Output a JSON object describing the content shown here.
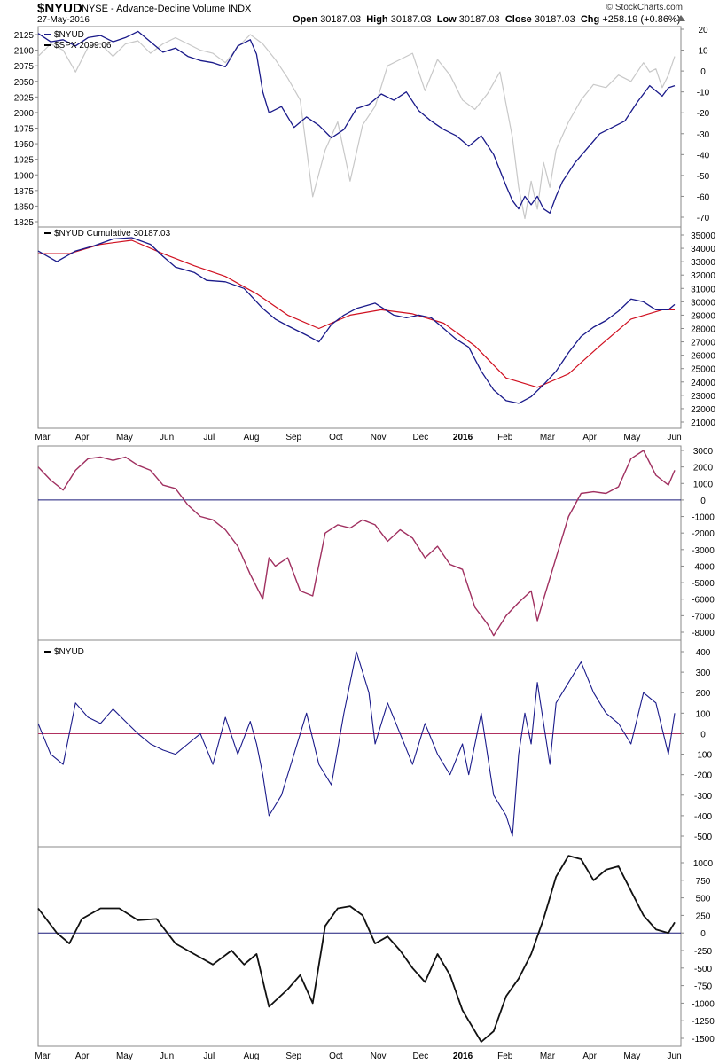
{
  "header": {
    "symbol": "$NYUD",
    "description": "NYSE - Advance-Decline Volume INDX",
    "date": "27-May-2016",
    "open_label": "Open",
    "open": "30187.03",
    "high_label": "High",
    "high": "30187.03",
    "low_label": "Low",
    "low": "30187.03",
    "close_label": "Close",
    "close": "30187.03",
    "chg_label": "Chg",
    "chg": "+258.19 (+0.86%)",
    "brand": "© StockCharts.com"
  },
  "chart_data": [
    {
      "type": "line",
      "legend": [
        "$NYUD",
        "$SPX 2099.06"
      ],
      "left_axis_ticks": [
        2125,
        2100,
        2075,
        2050,
        2025,
        2000,
        1975,
        1950,
        1925,
        1900,
        1875,
        1850,
        1825
      ],
      "right_axis_ticks": [
        20,
        10,
        0,
        -10,
        -20,
        -30,
        -40,
        -50,
        -60,
        -70
      ],
      "spx_points": [
        [
          0,
          2090
        ],
        [
          4,
          2110
        ],
        [
          8,
          2100
        ],
        [
          12,
          2065
        ],
        [
          16,
          2105
        ],
        [
          20,
          2110
        ],
        [
          24,
          2090
        ],
        [
          28,
          2110
        ],
        [
          32,
          2115
        ],
        [
          36,
          2095
        ],
        [
          40,
          2110
        ],
        [
          44,
          2120
        ],
        [
          48,
          2110
        ],
        [
          52,
          2100
        ],
        [
          56,
          2095
        ],
        [
          60,
          2080
        ],
        [
          64,
          2105
        ],
        [
          68,
          2125
        ],
        [
          72,
          2110
        ],
        [
          76,
          2085
        ],
        [
          80,
          2055
        ],
        [
          84,
          2020
        ],
        [
          88,
          1865
        ],
        [
          92,
          1940
        ],
        [
          96,
          1985
        ],
        [
          100,
          1890
        ],
        [
          104,
          1980
        ],
        [
          108,
          2010
        ],
        [
          112,
          2075
        ],
        [
          116,
          2085
        ],
        [
          120,
          2095
        ],
        [
          124,
          2035
        ],
        [
          128,
          2085
        ],
        [
          132,
          2060
        ],
        [
          136,
          2020
        ],
        [
          140,
          2005
        ],
        [
          144,
          2030
        ],
        [
          148,
          2065
        ],
        [
          152,
          1960
        ],
        [
          154,
          1880
        ],
        [
          156,
          1830
        ],
        [
          158,
          1890
        ],
        [
          160,
          1845
        ],
        [
          162,
          1920
        ],
        [
          164,
          1880
        ],
        [
          166,
          1940
        ],
        [
          170,
          1985
        ],
        [
          174,
          2020
        ],
        [
          178,
          2045
        ],
        [
          182,
          2040
        ],
        [
          186,
          2060
        ],
        [
          190,
          2050
        ],
        [
          194,
          2080
        ],
        [
          196,
          2065
        ],
        [
          198,
          2070
        ],
        [
          200,
          2040
        ],
        [
          202,
          2060
        ],
        [
          204,
          2090
        ]
      ],
      "nyud_points": [
        [
          0,
          18
        ],
        [
          4,
          14
        ],
        [
          8,
          15
        ],
        [
          12,
          12
        ],
        [
          16,
          16
        ],
        [
          20,
          17
        ],
        [
          24,
          14
        ],
        [
          28,
          16
        ],
        [
          32,
          19
        ],
        [
          36,
          14
        ],
        [
          40,
          9
        ],
        [
          44,
          11
        ],
        [
          48,
          7
        ],
        [
          52,
          5
        ],
        [
          56,
          4
        ],
        [
          60,
          2
        ],
        [
          64,
          12
        ],
        [
          68,
          15
        ],
        [
          70,
          8
        ],
        [
          72,
          -10
        ],
        [
          74,
          -20
        ],
        [
          78,
          -17
        ],
        [
          82,
          -27
        ],
        [
          86,
          -22
        ],
        [
          90,
          -26
        ],
        [
          94,
          -32
        ],
        [
          98,
          -28
        ],
        [
          102,
          -18
        ],
        [
          106,
          -16
        ],
        [
          110,
          -11
        ],
        [
          114,
          -14
        ],
        [
          118,
          -10
        ],
        [
          122,
          -19
        ],
        [
          126,
          -24
        ],
        [
          130,
          -28
        ],
        [
          134,
          -31
        ],
        [
          138,
          -36
        ],
        [
          142,
          -31
        ],
        [
          146,
          -40
        ],
        [
          150,
          -55
        ],
        [
          152,
          -62
        ],
        [
          154,
          -66
        ],
        [
          156,
          -60
        ],
        [
          158,
          -64
        ],
        [
          160,
          -60
        ],
        [
          162,
          -66
        ],
        [
          164,
          -68
        ],
        [
          166,
          -60
        ],
        [
          168,
          -53
        ],
        [
          172,
          -44
        ],
        [
          176,
          -37
        ],
        [
          180,
          -30
        ],
        [
          184,
          -27
        ],
        [
          188,
          -24
        ],
        [
          192,
          -15
        ],
        [
          196,
          -7
        ],
        [
          200,
          -12
        ],
        [
          202,
          -8
        ],
        [
          204,
          -7
        ]
      ]
    },
    {
      "type": "line",
      "legend": [
        "$NYUD Cumulative 30187.03"
      ],
      "right_axis_ticks": [
        35000,
        34000,
        33000,
        32000,
        31000,
        30000,
        29000,
        28000,
        27000,
        26000,
        25000,
        24000,
        23000,
        22000,
        21000
      ],
      "cumulative_points": [
        [
          0,
          33800
        ],
        [
          6,
          33000
        ],
        [
          12,
          33800
        ],
        [
          18,
          34200
        ],
        [
          24,
          34700
        ],
        [
          30,
          34800
        ],
        [
          36,
          34300
        ],
        [
          40,
          33400
        ],
        [
          44,
          32600
        ],
        [
          50,
          32200
        ],
        [
          54,
          31600
        ],
        [
          60,
          31500
        ],
        [
          66,
          31000
        ],
        [
          72,
          29500
        ],
        [
          76,
          28700
        ],
        [
          80,
          28200
        ],
        [
          86,
          27500
        ],
        [
          90,
          27000
        ],
        [
          94,
          28300
        ],
        [
          98,
          29000
        ],
        [
          102,
          29500
        ],
        [
          108,
          29900
        ],
        [
          114,
          29000
        ],
        [
          118,
          28800
        ],
        [
          122,
          29000
        ],
        [
          126,
          28800
        ],
        [
          130,
          28000
        ],
        [
          134,
          27200
        ],
        [
          138,
          26600
        ],
        [
          142,
          24800
        ],
        [
          146,
          23400
        ],
        [
          150,
          22600
        ],
        [
          154,
          22400
        ],
        [
          158,
          22900
        ],
        [
          162,
          23800
        ],
        [
          166,
          24800
        ],
        [
          170,
          26200
        ],
        [
          174,
          27400
        ],
        [
          178,
          28100
        ],
        [
          182,
          28600
        ],
        [
          186,
          29300
        ],
        [
          190,
          30200
        ],
        [
          194,
          30000
        ],
        [
          198,
          29400
        ],
        [
          202,
          29400
        ],
        [
          204,
          29800
        ]
      ],
      "ma_points": [
        [
          0,
          33600
        ],
        [
          10,
          33600
        ],
        [
          20,
          34300
        ],
        [
          30,
          34600
        ],
        [
          40,
          33600
        ],
        [
          50,
          32700
        ],
        [
          60,
          31900
        ],
        [
          70,
          30600
        ],
        [
          80,
          29000
        ],
        [
          90,
          28000
        ],
        [
          100,
          29000
        ],
        [
          110,
          29400
        ],
        [
          120,
          29100
        ],
        [
          130,
          28400
        ],
        [
          140,
          26700
        ],
        [
          150,
          24300
        ],
        [
          160,
          23600
        ],
        [
          170,
          24600
        ],
        [
          180,
          26700
        ],
        [
          190,
          28700
        ],
        [
          200,
          29400
        ],
        [
          204,
          29400
        ]
      ]
    },
    {
      "type": "line",
      "right_axis_ticks": [
        3000,
        2000,
        1000,
        0,
        -1000,
        -2000,
        -3000,
        -4000,
        -5000,
        -6000,
        -7000,
        -8000
      ],
      "points": [
        [
          0,
          2000
        ],
        [
          4,
          1200
        ],
        [
          8,
          600
        ],
        [
          12,
          1800
        ],
        [
          16,
          2500
        ],
        [
          20,
          2600
        ],
        [
          24,
          2400
        ],
        [
          28,
          2600
        ],
        [
          32,
          2100
        ],
        [
          36,
          1800
        ],
        [
          40,
          900
        ],
        [
          44,
          700
        ],
        [
          48,
          -300
        ],
        [
          52,
          -1000
        ],
        [
          56,
          -1200
        ],
        [
          60,
          -1800
        ],
        [
          64,
          -2800
        ],
        [
          68,
          -4500
        ],
        [
          72,
          -6000
        ],
        [
          74,
          -3500
        ],
        [
          76,
          -4000
        ],
        [
          80,
          -3500
        ],
        [
          84,
          -5500
        ],
        [
          88,
          -5800
        ],
        [
          92,
          -2000
        ],
        [
          96,
          -1500
        ],
        [
          100,
          -1700
        ],
        [
          104,
          -1200
        ],
        [
          108,
          -1500
        ],
        [
          112,
          -2500
        ],
        [
          116,
          -1800
        ],
        [
          120,
          -2300
        ],
        [
          124,
          -3500
        ],
        [
          128,
          -2800
        ],
        [
          132,
          -3900
        ],
        [
          136,
          -4200
        ],
        [
          140,
          -6500
        ],
        [
          144,
          -7500
        ],
        [
          146,
          -8200
        ],
        [
          150,
          -7000
        ],
        [
          154,
          -6200
        ],
        [
          158,
          -5500
        ],
        [
          160,
          -7300
        ],
        [
          162,
          -6000
        ],
        [
          166,
          -3500
        ],
        [
          170,
          -1000
        ],
        [
          174,
          400
        ],
        [
          178,
          500
        ],
        [
          182,
          400
        ],
        [
          186,
          800
        ],
        [
          190,
          2500
        ],
        [
          194,
          3000
        ],
        [
          198,
          1500
        ],
        [
          202,
          900
        ],
        [
          204,
          1800
        ]
      ]
    },
    {
      "type": "line",
      "legend": [
        "$NYUD"
      ],
      "right_axis_ticks": [
        400,
        300,
        200,
        100,
        0,
        -100,
        -200,
        -300,
        -400,
        -500
      ],
      "points": [
        [
          0,
          50
        ],
        [
          4,
          -100
        ],
        [
          8,
          -150
        ],
        [
          12,
          150
        ],
        [
          16,
          80
        ],
        [
          20,
          50
        ],
        [
          24,
          120
        ],
        [
          28,
          60
        ],
        [
          32,
          0
        ],
        [
          36,
          -50
        ],
        [
          40,
          -80
        ],
        [
          44,
          -100
        ],
        [
          48,
          -50
        ],
        [
          52,
          0
        ],
        [
          56,
          -150
        ],
        [
          60,
          80
        ],
        [
          64,
          -100
        ],
        [
          68,
          60
        ],
        [
          70,
          -50
        ],
        [
          72,
          -200
        ],
        [
          74,
          -400
        ],
        [
          78,
          -300
        ],
        [
          82,
          -100
        ],
        [
          86,
          100
        ],
        [
          90,
          -150
        ],
        [
          94,
          -250
        ],
        [
          98,
          100
        ],
        [
          102,
          400
        ],
        [
          106,
          200
        ],
        [
          108,
          -50
        ],
        [
          112,
          150
        ],
        [
          116,
          0
        ],
        [
          120,
          -150
        ],
        [
          124,
          50
        ],
        [
          128,
          -100
        ],
        [
          132,
          -200
        ],
        [
          136,
          -50
        ],
        [
          138,
          -200
        ],
        [
          142,
          100
        ],
        [
          146,
          -300
        ],
        [
          150,
          -400
        ],
        [
          152,
          -500
        ],
        [
          154,
          -100
        ],
        [
          156,
          100
        ],
        [
          158,
          -50
        ],
        [
          160,
          250
        ],
        [
          164,
          -150
        ],
        [
          166,
          150
        ],
        [
          170,
          250
        ],
        [
          174,
          350
        ],
        [
          178,
          200
        ],
        [
          182,
          100
        ],
        [
          186,
          50
        ],
        [
          190,
          -50
        ],
        [
          194,
          200
        ],
        [
          198,
          150
        ],
        [
          202,
          -100
        ],
        [
          204,
          100
        ]
      ]
    },
    {
      "type": "line",
      "right_axis_ticks": [
        1000,
        750,
        500,
        250,
        0,
        -250,
        -500,
        -750,
        -1000,
        -1250,
        -1500
      ],
      "points": [
        [
          0,
          350
        ],
        [
          6,
          0
        ],
        [
          10,
          -150
        ],
        [
          14,
          200
        ],
        [
          20,
          350
        ],
        [
          26,
          350
        ],
        [
          32,
          180
        ],
        [
          38,
          200
        ],
        [
          44,
          -150
        ],
        [
          50,
          -300
        ],
        [
          56,
          -450
        ],
        [
          62,
          -250
        ],
        [
          66,
          -450
        ],
        [
          70,
          -300
        ],
        [
          74,
          -1050
        ],
        [
          80,
          -800
        ],
        [
          84,
          -600
        ],
        [
          88,
          -1000
        ],
        [
          92,
          100
        ],
        [
          96,
          350
        ],
        [
          100,
          380
        ],
        [
          104,
          250
        ],
        [
          108,
          -150
        ],
        [
          112,
          -50
        ],
        [
          116,
          -250
        ],
        [
          120,
          -500
        ],
        [
          124,
          -700
        ],
        [
          128,
          -300
        ],
        [
          132,
          -600
        ],
        [
          136,
          -1100
        ],
        [
          140,
          -1400
        ],
        [
          142,
          -1550
        ],
        [
          146,
          -1400
        ],
        [
          150,
          -900
        ],
        [
          154,
          -650
        ],
        [
          158,
          -300
        ],
        [
          162,
          200
        ],
        [
          166,
          800
        ],
        [
          170,
          1100
        ],
        [
          174,
          1050
        ],
        [
          178,
          750
        ],
        [
          182,
          900
        ],
        [
          186,
          950
        ],
        [
          190,
          600
        ],
        [
          194,
          250
        ],
        [
          198,
          50
        ],
        [
          202,
          0
        ],
        [
          204,
          150
        ]
      ]
    }
  ],
  "x_axis": {
    "labels": [
      "Mar",
      "Apr",
      "May",
      "Jun",
      "Jul",
      "Aug",
      "Sep",
      "Oct",
      "Nov",
      "Dec",
      "2016",
      "Feb",
      "Mar",
      "Apr",
      "May",
      "Jun"
    ],
    "bold": [
      "2016"
    ]
  }
}
